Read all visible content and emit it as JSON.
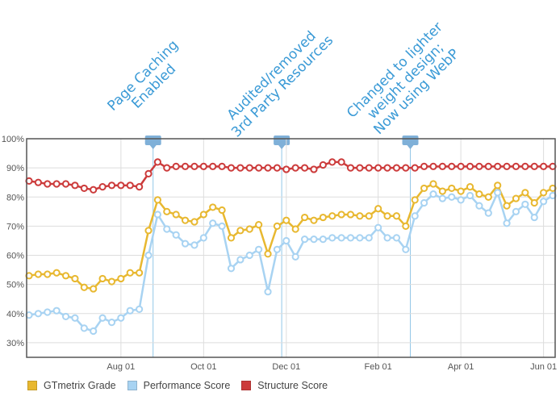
{
  "chart_data": {
    "type": "line",
    "y_ticks": [
      "100%",
      "90%",
      "80%",
      "70%",
      "60%",
      "50%",
      "40%",
      "30%"
    ],
    "ylim": [
      25,
      100
    ],
    "x_tick_labels": [
      {
        "label": "Aug 01",
        "index": 10
      },
      {
        "label": "Oct 01",
        "index": 19
      },
      {
        "label": "Dec 01",
        "index": 28
      },
      {
        "label": "Feb 01",
        "index": 38
      },
      {
        "label": "Apr 01",
        "index": 47
      },
      {
        "label": "Jun 01",
        "index": 56
      }
    ],
    "grid": true,
    "legend_position": "bottom-left",
    "series": [
      {
        "name": "GTmetrix Grade",
        "color": "#e8b830",
        "values": [
          53,
          53.5,
          53.5,
          54,
          53,
          52,
          49,
          48.5,
          52,
          51,
          52,
          54,
          54,
          68.5,
          79,
          75,
          74,
          72,
          71.5,
          74,
          76.5,
          75.5,
          66,
          68.5,
          69,
          70.5,
          60.5,
          70,
          72,
          69,
          73,
          72,
          73,
          73.5,
          74,
          74,
          73.5,
          73.5,
          76,
          73.5,
          73.5,
          70,
          79,
          83,
          84.5,
          82,
          83,
          82,
          83.5,
          81,
          80,
          84,
          77,
          79.5,
          81.5,
          78,
          81.5,
          83
        ]
      },
      {
        "name": "Performance Score",
        "color": "#a8d3f2",
        "values": [
          39.5,
          40,
          40.5,
          41,
          39,
          38.5,
          35,
          34,
          38.5,
          37,
          38.5,
          41,
          41.5,
          60,
          74,
          69,
          67,
          64,
          63.5,
          66,
          71,
          70,
          55.5,
          58.5,
          60,
          62,
          47.5,
          62,
          65,
          59.5,
          65.5,
          65.5,
          65.5,
          66,
          66,
          66,
          66,
          66,
          69.5,
          66,
          66,
          62,
          73.5,
          78,
          81,
          79.5,
          80,
          79,
          80.5,
          77,
          74.5,
          81.5,
          71,
          75,
          77.5,
          73,
          78.5,
          80.5
        ]
      },
      {
        "name": "Structure Score",
        "color": "#cc3b3b",
        "values": [
          85.5,
          85,
          84.5,
          84.5,
          84.5,
          84,
          83,
          82.5,
          83.5,
          84,
          84,
          84,
          83.5,
          88,
          92,
          90,
          90.5,
          90.5,
          90.5,
          90.5,
          90.5,
          90.5,
          90,
          90,
          90,
          90,
          90,
          90,
          89.5,
          90,
          90,
          89.5,
          91,
          92,
          92,
          90,
          90,
          90,
          90,
          90,
          90,
          90,
          90,
          90.5,
          90.5,
          90.5,
          90.5,
          90.5,
          90.5,
          90.5,
          90.5,
          90.5,
          90.5,
          90.5,
          90.5,
          90.5,
          90.5,
          90.5
        ]
      }
    ],
    "annotations": [
      {
        "lines": [
          "Page Caching",
          "Enabled"
        ],
        "index": 13.5
      },
      {
        "lines": [
          "Audited/removed",
          "3rd Party Resources"
        ],
        "index": 27.5
      },
      {
        "lines": [
          "Changed to lighter",
          "weight design;",
          "Now using WebP"
        ],
        "index": 41.5
      }
    ],
    "colors": {
      "grid": "#dddddd",
      "border": "#555555",
      "annotation": "#3a9ad6",
      "flag": "#7fb0d8"
    }
  }
}
